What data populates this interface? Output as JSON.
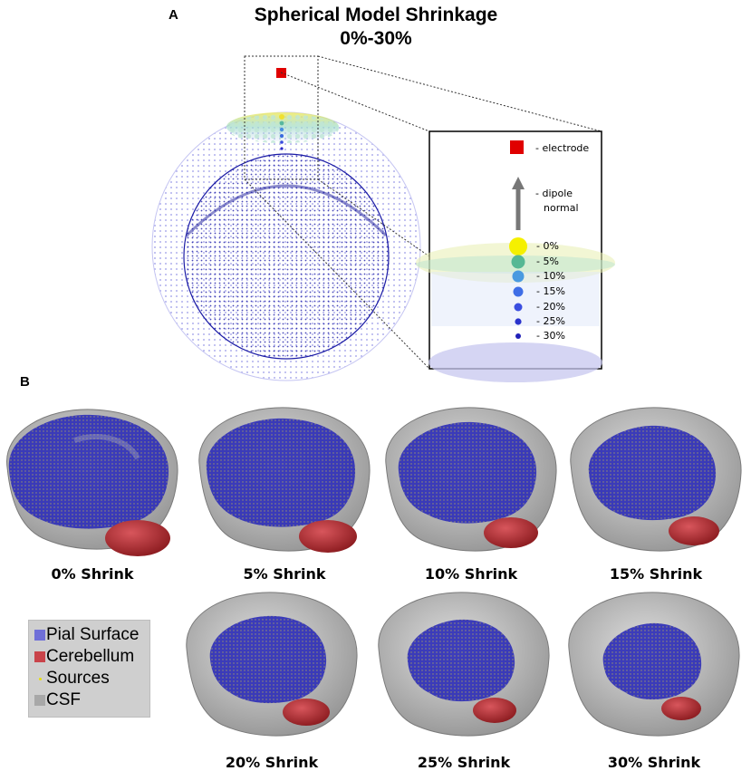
{
  "panel_a": {
    "letter": "A",
    "title_line1": "Spherical Model Shrinkage",
    "title_line2": "0%-30%",
    "inset": {
      "electrode_label": "- electrode",
      "dipole_label_line1": "- dipole",
      "dipole_label_line2": "normal",
      "shrink_levels": [
        "- 0%",
        "- 5%",
        "- 10%",
        "- 15%",
        "- 20%",
        "- 25%",
        "- 30%"
      ]
    }
  },
  "panel_b": {
    "letter": "B",
    "brains": [
      {
        "label": "0% Shrink"
      },
      {
        "label": "5% Shrink"
      },
      {
        "label": "10% Shrink"
      },
      {
        "label": "15% Shrink"
      },
      {
        "label": "20% Shrink"
      },
      {
        "label": "25% Shrink"
      },
      {
        "label": "30% Shrink"
      }
    ],
    "legend": [
      {
        "label": "Pial Surface",
        "color": "#6f6fd8"
      },
      {
        "label": "Cerebellum",
        "color": "#c9444a"
      },
      {
        "label": "Sources",
        "color": "#e8e000"
      },
      {
        "label": "CSF",
        "color": "#a8a8a8"
      }
    ]
  },
  "colors": {
    "electrode": "#e00000",
    "outer_sphere": "#9a9ae8",
    "inner_sphere": "#1a1aa8",
    "brain_blue": "#3a3ac8",
    "cerebellum": "#b0262c",
    "csf": "#b5b5b5",
    "arrow": "#777777"
  }
}
